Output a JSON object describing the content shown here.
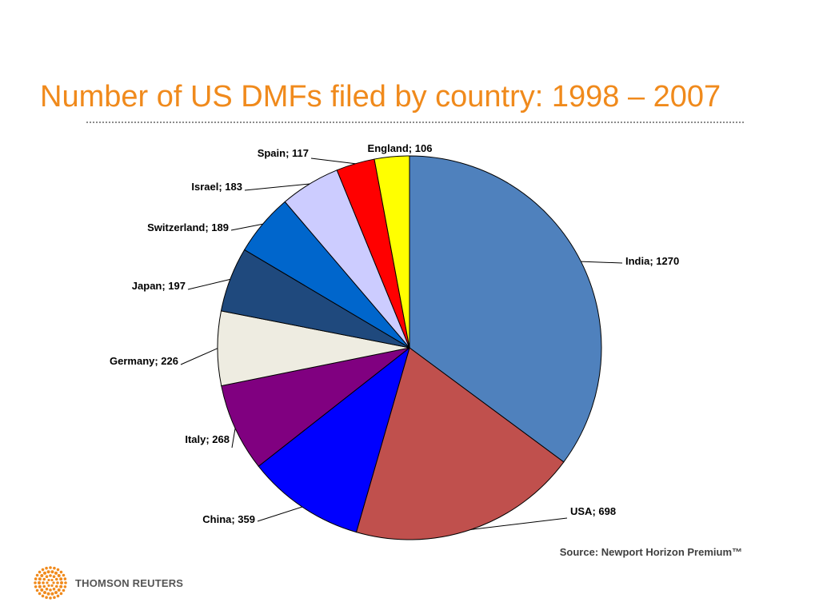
{
  "title": "Number of US DMFs filed by country: 1998 – 2007",
  "source": "Source: Newport Horizon Premium™",
  "logo": {
    "text": "THOMSON REUTERS",
    "color": "#f08a1c"
  },
  "chart_data": {
    "type": "pie",
    "title": "Number of US DMFs filed by country: 1998 – 2007",
    "start_angle_deg": 0,
    "direction": "clockwise",
    "slices": [
      {
        "label": "India",
        "value": 1270,
        "color": "#4f81bd"
      },
      {
        "label": "USA",
        "value": 698,
        "color": "#c0504d"
      },
      {
        "label": "China",
        "value": 359,
        "color": "#0000ff"
      },
      {
        "label": "Italy",
        "value": 268,
        "color": "#800080"
      },
      {
        "label": "Germany",
        "value": 226,
        "color": "#eeece1"
      },
      {
        "label": "Japan",
        "value": 197,
        "color": "#1f497d"
      },
      {
        "label": "Switzerland",
        "value": 189,
        "color": "#0066cc"
      },
      {
        "label": "Israel",
        "value": 183,
        "color": "#ccccff"
      },
      {
        "label": "Spain",
        "value": 117,
        "color": "#ff0000"
      },
      {
        "label": "England",
        "value": 106,
        "color": "#ffff00"
      }
    ],
    "data_labels": [
      "India; 1270",
      "USA; 698",
      "China; 359",
      "Italy; 268",
      "Germany; 226",
      "Japan; 197",
      "Switzerland; 189",
      "Israel; 183",
      "Spain; 117",
      "England; 106"
    ],
    "legend": "none"
  }
}
